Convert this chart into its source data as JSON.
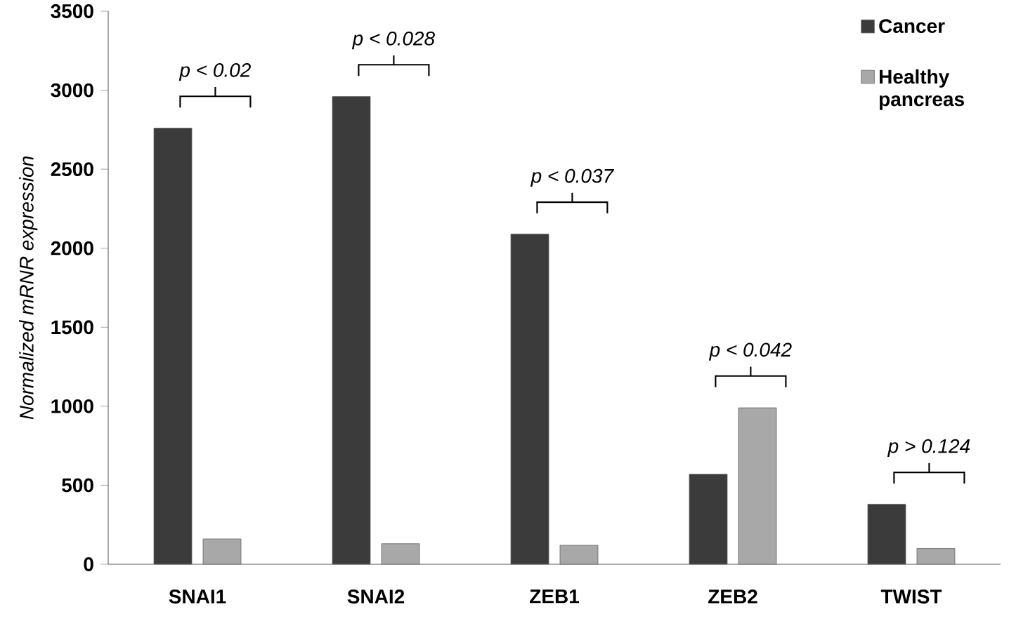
{
  "chart_data": {
    "type": "bar",
    "ylabel": "Normalized mRNR expression",
    "categories": [
      "SNAI1",
      "SNAI2",
      "ZEB1",
      "ZEB2",
      "TWIST"
    ],
    "series": [
      {
        "name": "Cancer",
        "color": "#3b3b3b",
        "values": [
          2760,
          2960,
          2090,
          570,
          380
        ]
      },
      {
        "name": "Healthy pancreas",
        "color": "#a8a8a8",
        "values": [
          160,
          130,
          120,
          990,
          100
        ]
      }
    ],
    "ylim": [
      0,
      3500
    ],
    "yticks": [
      0,
      500,
      1000,
      1500,
      2000,
      2500,
      3000,
      3500
    ],
    "grid": false,
    "legend": "top right",
    "annotations": [
      "p < 0.02",
      "p < 0.028",
      "p < 0.037",
      "p < 0.042",
      "p > 0.124"
    ]
  }
}
